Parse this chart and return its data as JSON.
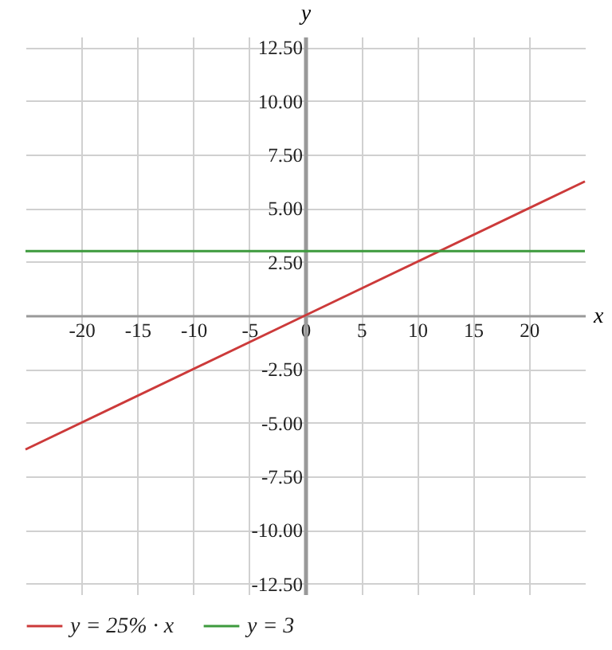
{
  "chart_data": {
    "type": "line",
    "xlabel": "x",
    "ylabel": "y",
    "xlim": [
      -25,
      25
    ],
    "ylim": [
      -13,
      13
    ],
    "xticks": [
      -20,
      -15,
      -10,
      -5,
      0,
      5,
      10,
      15,
      20
    ],
    "yticks": [
      {
        "value": -12.5,
        "label": "-12.50"
      },
      {
        "value": -10,
        "label": "-10.00"
      },
      {
        "value": -7.5,
        "label": "-7.50"
      },
      {
        "value": -5,
        "label": "-5.00"
      },
      {
        "value": -2.5,
        "label": "-2.50"
      },
      {
        "value": 2.5,
        "label": "2.50"
      },
      {
        "value": 5,
        "label": "5.00"
      },
      {
        "value": 7.5,
        "label": "7.50"
      },
      {
        "value": 10,
        "label": "10.00"
      },
      {
        "value": 12.5,
        "label": "12.50"
      }
    ],
    "x": [
      -25,
      0,
      25
    ],
    "series": [
      {
        "name": "y = 25% · x",
        "color": "#cc3a3a",
        "values": [
          -6.25,
          0,
          6.25
        ]
      },
      {
        "name": "y = 3",
        "color": "#3d9a3d",
        "values": [
          3,
          3,
          3
        ]
      }
    ],
    "grid": true,
    "legend": "bottom"
  }
}
